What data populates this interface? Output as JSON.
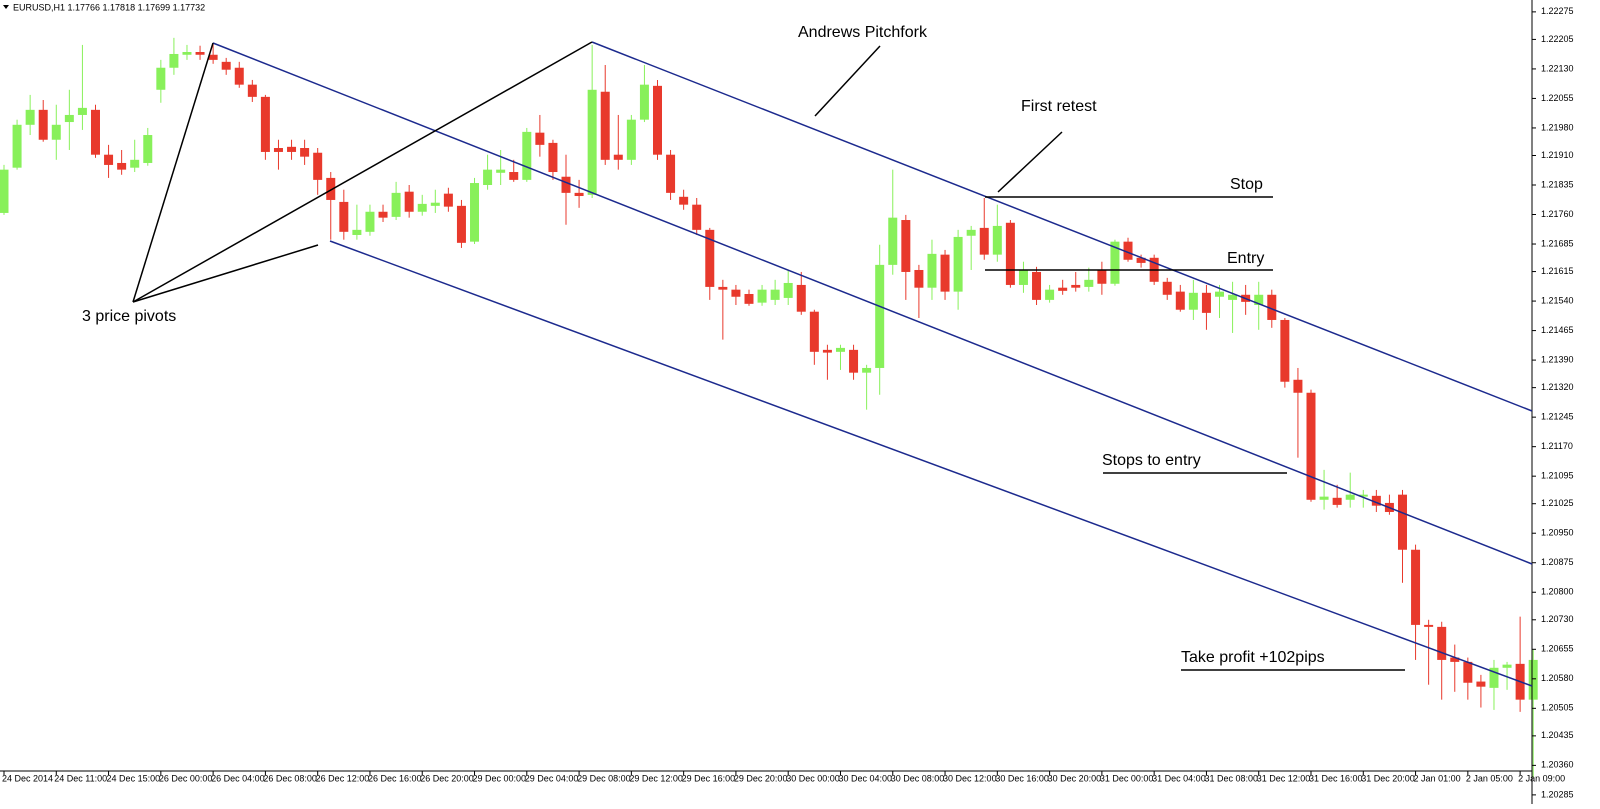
{
  "chart_data": {
    "type": "candlestick",
    "header": "EURUSD,H1  1.17766 1.17818 1.17699 1.17732",
    "annotations": [
      "Andrews Pitchfork",
      "First retest",
      "Stop",
      "Entry",
      "Stops to entry",
      "Take profit +102pips",
      "3 price pivots"
    ],
    "up_color": "#88f05a",
    "down_color": "#e8392c",
    "categories": [
      "24 Dec 2014",
      null,
      null,
      null,
      "24 Dec 11:00",
      null,
      null,
      null,
      "24 Dec 15:00",
      null,
      null,
      null,
      "26 Dec 00:00",
      null,
      null,
      null,
      "26 Dec 04:00",
      null,
      null,
      null,
      "26 Dec 08:00",
      null,
      null,
      null,
      "26 Dec 12:00",
      null,
      null,
      null,
      "26 Dec 16:00",
      null,
      null,
      null,
      "26 Dec 20:00",
      null,
      null,
      null,
      "29 Dec 00:00",
      null,
      null,
      null,
      "29 Dec 04:00",
      null,
      null,
      null,
      "29 Dec 08:00",
      null,
      null,
      null,
      "29 Dec 12:00",
      null,
      null,
      null,
      "29 Dec 16:00",
      null,
      null,
      null,
      "29 Dec 20:00",
      null,
      null,
      null,
      "30 Dec 00:00",
      null,
      null,
      null,
      "30 Dec 04:00",
      null,
      null,
      null,
      "30 Dec 08:00",
      null,
      null,
      null,
      "30 Dec 12:00",
      null,
      null,
      null,
      "30 Dec 16:00",
      null,
      null,
      null,
      "30 Dec 20:00",
      null,
      null,
      null,
      "31 Dec 00:00",
      null,
      null,
      null,
      "31 Dec 04:00",
      null,
      null,
      null,
      "31 Dec 08:00",
      null,
      null,
      null,
      "31 Dec 12:00",
      null,
      null,
      null,
      "31 Dec 16:00",
      null,
      null,
      null,
      "31 Dec 20:00",
      null,
      null,
      null,
      "2 Jan 01:00",
      null,
      null,
      null,
      "2 Jan 05:00",
      null,
      null,
      null,
      "2 Jan 09:00",
      null
    ],
    "open": [
      1.21764,
      1.21879,
      1.21988,
      1.22026,
      1.2195,
      1.21995,
      1.22013,
      1.22026,
      1.21912,
      1.21891,
      1.21879,
      1.21891,
      1.22077,
      1.22133,
      1.22166,
      1.22173,
      1.22166,
      1.22148,
      1.22133,
      1.2209,
      1.22059,
      1.21929,
      1.21932,
      1.21929,
      1.21917,
      1.21853,
      1.21792,
      1.21708,
      1.21716,
      1.21767,
      1.21754,
      1.21818,
      1.21767,
      1.21782,
      1.21813,
      1.21782,
      1.21691,
      1.21835,
      1.21866,
      1.21868,
      1.21848,
      1.21968,
      1.21942,
      1.21856,
      1.21815,
      1.2181,
      1.22072,
      1.21912,
      1.21899,
      1.22001,
      1.22087,
      1.21912,
      1.21805,
      1.21785,
      1.21721,
      1.21576,
      1.21569,
      1.21558,
      1.21536,
      1.21543,
      1.21548,
      1.21581,
      1.21513,
      1.21416,
      1.21411,
      1.21416,
      1.21358,
      1.2137,
      1.21632,
      1.21746,
      1.21619,
      1.21574,
      1.21658,
      1.21564,
      1.21706,
      1.21726,
      1.21658,
      1.21739,
      1.21581,
      1.21614,
      1.21543,
      1.21574,
      1.21581,
      1.21576,
      1.21619,
      1.21584,
      1.21691,
      1.2165,
      1.2165,
      1.21589,
      1.21564,
      1.21518,
      1.21561,
      1.21551,
      1.21543,
      1.21556,
      1.2153,
      1.21556,
      1.21492,
      1.2134,
      1.21307,
      1.21035,
      1.2104,
      1.21035,
      1.21043,
      1.21045,
      1.21027,
      1.21048,
      1.20908,
      1.20717,
      1.20712,
      1.20634,
      1.20623,
      1.20573,
      1.20557,
      1.20608,
      1.20618,
      1.20527
    ],
    "high": [
      1.21886,
      1.22001,
      1.22064,
      1.22051,
      1.22039,
      1.22077,
      1.22191,
      1.22039,
      1.21937,
      1.21924,
      1.2195,
      1.2198,
      1.22153,
      1.22209,
      1.22191,
      1.22189,
      1.22196,
      1.22158,
      1.22148,
      1.22102,
      1.22064,
      1.2195,
      1.2195,
      1.2195,
      1.21929,
      1.21868,
      1.21823,
      1.21785,
      1.21785,
      1.21785,
      1.21843,
      1.21835,
      1.2181,
      1.21823,
      1.21828,
      1.21797,
      1.21853,
      1.21912,
      1.21924,
      1.21899,
      1.2198,
      1.22013,
      1.2195,
      1.21912,
      1.21848,
      1.22191,
      1.2214,
      1.22013,
      1.22013,
      1.2214,
      1.22102,
      1.21924,
      1.21823,
      1.21802,
      1.21726,
      1.21594,
      1.21581,
      1.21569,
      1.21581,
      1.21594,
      1.21619,
      1.21614,
      1.21518,
      1.21429,
      1.21429,
      1.21429,
      1.21378,
      1.21683,
      1.21874,
      1.21759,
      1.21632,
      1.21696,
      1.2167,
      1.21721,
      1.21731,
      1.21802,
      1.21785,
      1.21746,
      1.2164,
      1.21627,
      1.21581,
      1.21594,
      1.21614,
      1.21625,
      1.2164,
      1.21696,
      1.21701,
      1.21658,
      1.21658,
      1.21599,
      1.21581,
      1.21594,
      1.21581,
      1.21581,
      1.21589,
      1.21581,
      1.21589,
      1.21569,
      1.21497,
      1.2137,
      1.21315,
      1.21111,
      1.21073,
      1.21104,
      1.2106,
      1.2106,
      1.21048,
      1.2106,
      1.20921,
      1.2073,
      1.20725,
      1.20667,
      1.20634,
      1.2059,
      1.20628,
      1.20623,
      1.20738,
      1.20654
    ],
    "low": [
      1.21759,
      1.21874,
      1.21962,
      1.21945,
      1.21899,
      1.21924,
      1.21975,
      1.21904,
      1.21853,
      1.21861,
      1.21868,
      1.21884,
      1.22044,
      1.22115,
      1.22153,
      1.22153,
      1.22143,
      1.22115,
      1.22082,
      1.22046,
      1.21899,
      1.21874,
      1.21899,
      1.21886,
      1.2181,
      1.21696,
      1.21696,
      1.21696,
      1.21706,
      1.21741,
      1.21746,
      1.21752,
      1.21757,
      1.21764,
      1.21767,
      1.21675,
      1.21685,
      1.21823,
      1.21835,
      1.21843,
      1.21843,
      1.21907,
      1.21848,
      1.21734,
      1.21777,
      1.21802,
      1.21886,
      1.21874,
      1.21886,
      1.21995,
      1.21899,
      1.21797,
      1.21772,
      1.21708,
      1.21543,
      1.21442,
      1.2153,
      1.21528,
      1.21528,
      1.2153,
      1.2153,
      1.21505,
      1.21378,
      1.2134,
      1.21365,
      1.2134,
      1.21264,
      1.21302,
      1.21607,
      1.21543,
      1.21497,
      1.21543,
      1.21543,
      1.21518,
      1.21619,
      1.21645,
      1.2164,
      1.21574,
      1.21561,
      1.2153,
      1.21536,
      1.21556,
      1.21564,
      1.21564,
      1.21556,
      1.21579,
      1.2164,
      1.21625,
      1.21581,
      1.21543,
      1.21513,
      1.21492,
      1.21467,
      1.21497,
      1.21459,
      1.21505,
      1.21467,
      1.21472,
      1.2132,
      1.21142,
      1.2103,
      1.2101,
      1.21015,
      1.21015,
      1.21015,
      1.21004,
      1.20997,
      1.20824,
      1.20628,
      1.20565,
      1.20527,
      1.20547,
      1.20527,
      1.20507,
      1.20501,
      1.20552,
      1.20496,
      1.20329
    ],
    "close": [
      1.21874,
      1.21988,
      1.22026,
      1.2195,
      1.21988,
      1.22013,
      1.22031,
      1.21912,
      1.21886,
      1.21874,
      1.21899,
      1.21962,
      1.22133,
      1.22168,
      1.22173,
      1.22166,
      1.22153,
      1.22128,
      1.2209,
      1.22059,
      1.21919,
      1.21919,
      1.21919,
      1.21907,
      1.21848,
      1.21797,
      1.21716,
      1.21721,
      1.21767,
      1.21752,
      1.21815,
      1.21767,
      1.21787,
      1.2179,
      1.2178,
      1.21688,
      1.2184,
      1.21874,
      1.21874,
      1.21848,
      1.2197,
      1.21937,
      1.21868,
      1.21815,
      1.21807,
      1.22077,
      1.21899,
      1.21899,
      1.22001,
      1.2209,
      1.21912,
      1.21815,
      1.21785,
      1.21721,
      1.21576,
      1.21569,
      1.21551,
      1.21533,
      1.21569,
      1.21569,
      1.21586,
      1.21513,
      1.21411,
      1.21409,
      1.21421,
      1.21358,
      1.2137,
      1.21632,
      1.21752,
      1.21614,
      1.21574,
      1.2166,
      1.21564,
      1.21703,
      1.21721,
      1.21658,
      1.21731,
      1.21581,
      1.21619,
      1.21543,
      1.21569,
      1.21566,
      1.21574,
      1.21594,
      1.21584,
      1.21691,
      1.21645,
      1.21637,
      1.21589,
      1.21556,
      1.21518,
      1.21561,
      1.2151,
      1.21564,
      1.21556,
      1.21538,
      1.21556,
      1.21492,
      1.21335,
      1.21307,
      1.21035,
      1.21043,
      1.21022,
      1.21048,
      1.21048,
      1.2102,
      1.21004,
      1.20908,
      1.20717,
      1.20712,
      1.20628,
      1.20623,
      1.2057,
      1.2056,
      1.20608,
      1.20616,
      1.20527,
      1.20628
    ],
    "ylim": [
      1.20272,
      1.22295
    ],
    "yticks": [
      1.20285,
      {
        "value": 1.2036,
        "label": "1.20360"
      },
      1.20435,
      1.20505,
      {
        "value": 1.2058,
        "label": "1.20580"
      },
      1.20655,
      {
        "value": 1.2073,
        "label": "1.20730"
      },
      {
        "value": 1.208,
        "label": "1.20800"
      },
      1.20875,
      {
        "value": 1.2095,
        "label": "1.20950"
      },
      1.21025,
      1.21095,
      {
        "value": 1.2117,
        "label": "1.21170"
      },
      1.21245,
      {
        "value": 1.2132,
        "label": "1.21320"
      },
      {
        "value": 1.2139,
        "label": "1.21390"
      },
      1.21465,
      {
        "value": 1.2154,
        "label": "1.21540"
      },
      1.21615,
      1.21685,
      {
        "value": 1.2176,
        "label": "1.21760"
      },
      1.21835,
      {
        "value": 1.2191,
        "label": "1.21910"
      },
      {
        "value": 1.2198,
        "label": "1.21980"
      },
      1.22055,
      {
        "value": 1.2213,
        "label": "1.22130"
      },
      1.22205,
      1.22275
    ]
  }
}
